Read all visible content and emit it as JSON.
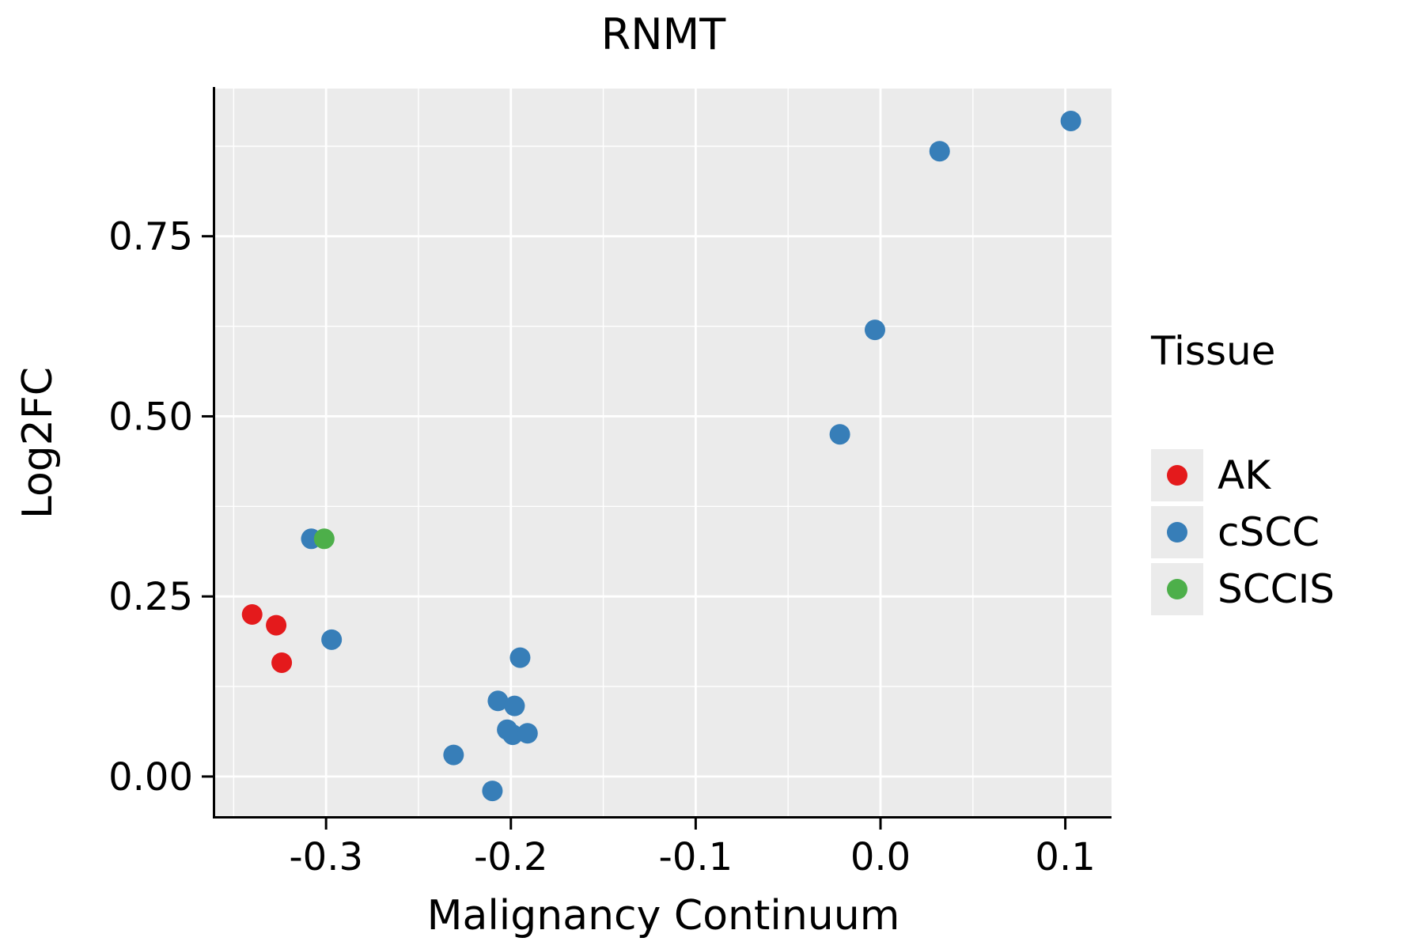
{
  "chart_data": {
    "type": "scatter",
    "title": "RNMT",
    "xlabel": "Malignancy Continuum",
    "ylabel": "Log2FC",
    "xlim": [
      -0.36,
      0.125
    ],
    "ylim": [
      -0.055,
      0.955
    ],
    "grid": true,
    "panel_bg": "#EBEBEB",
    "grid_color": "#FFFFFF",
    "axis_color": "#000000",
    "x_ticks": [
      -0.3,
      -0.2,
      -0.1,
      0.0,
      0.1
    ],
    "x_tick_labels": [
      "-0.3",
      "-0.2",
      "-0.1",
      "0.0",
      "0.1"
    ],
    "x_minor": [
      -0.35,
      -0.25,
      -0.15,
      -0.05,
      0.05
    ],
    "y_ticks": [
      0.0,
      0.25,
      0.5,
      0.75
    ],
    "y_tick_labels": [
      "0.00",
      "0.25",
      "0.50",
      "0.75"
    ],
    "y_minor": [
      0.125,
      0.375,
      0.625,
      0.875
    ],
    "legend": {
      "title": "Tissue",
      "position": "right",
      "entries": [
        {
          "label": "AK",
          "color": "#E41A1C"
        },
        {
          "label": "cSCC",
          "color": "#377EB8"
        },
        {
          "label": "SCCIS",
          "color": "#4DAF4A"
        }
      ]
    },
    "series": [
      {
        "name": "AK",
        "color": "#E41A1C",
        "points": [
          [
            -0.34,
            0.225
          ],
          [
            -0.327,
            0.21
          ],
          [
            -0.324,
            0.158
          ]
        ]
      },
      {
        "name": "cSCC",
        "color": "#377EB8",
        "points": [
          [
            -0.308,
            0.33
          ],
          [
            -0.297,
            0.19
          ],
          [
            -0.231,
            0.03
          ],
          [
            -0.207,
            0.105
          ],
          [
            -0.198,
            0.098
          ],
          [
            -0.202,
            0.065
          ],
          [
            -0.199,
            0.058
          ],
          [
            -0.191,
            0.06
          ],
          [
            -0.195,
            0.165
          ],
          [
            -0.21,
            -0.02
          ],
          [
            -0.022,
            0.475
          ],
          [
            -0.003,
            0.62
          ],
          [
            0.032,
            0.868
          ],
          [
            0.103,
            0.91
          ]
        ]
      },
      {
        "name": "SCCIS",
        "color": "#4DAF4A",
        "points": [
          [
            -0.301,
            0.33
          ]
        ]
      }
    ]
  }
}
